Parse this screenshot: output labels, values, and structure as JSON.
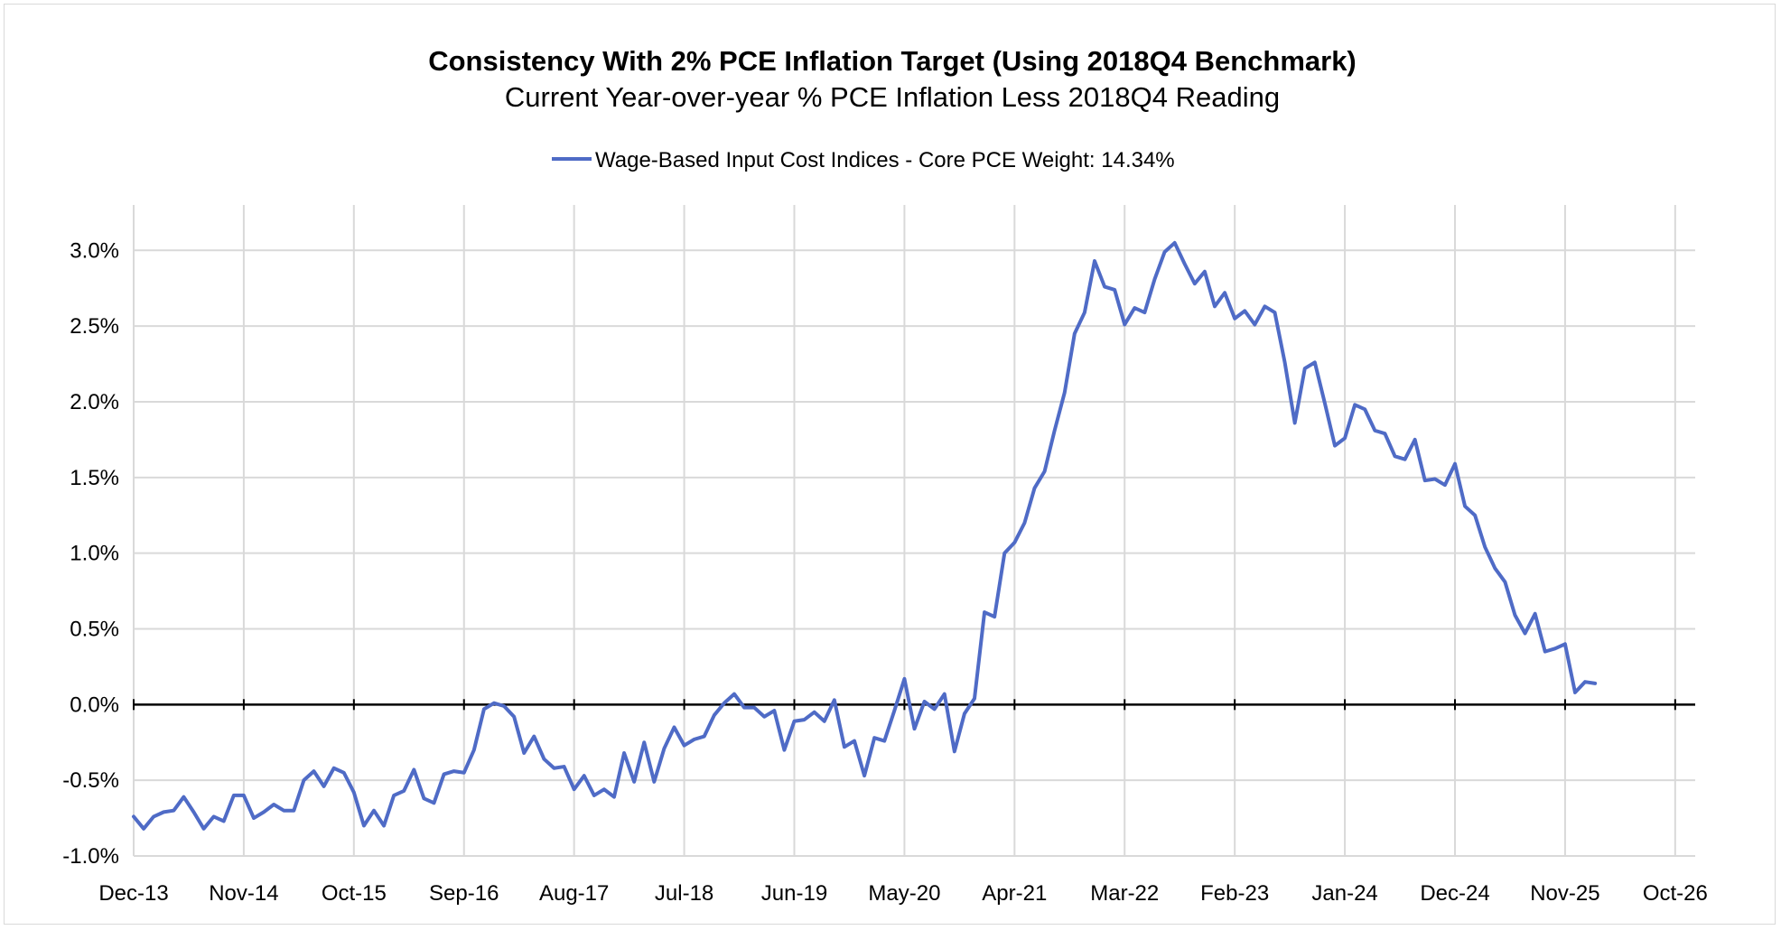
{
  "chart_data": {
    "type": "line",
    "title": "Consistency With 2% PCE Inflation Target (Using 2018Q4 Benchmark)",
    "subtitle": "Current Year-over-year % PCE Inflation Less 2018Q4 Reading",
    "xlabel": "",
    "ylabel": "",
    "x_tick_labels": [
      "Dec-13",
      "Nov-14",
      "Oct-15",
      "Sep-16",
      "Aug-17",
      "Jul-18",
      "Jun-19",
      "May-20",
      "Apr-21",
      "Mar-22",
      "Feb-23",
      "Jan-24",
      "Dec-24",
      "Nov-25",
      "Oct-26"
    ],
    "y_tick_labels": [
      "-1.0%",
      "-0.5%",
      "0.0%",
      "0.5%",
      "1.0%",
      "1.5%",
      "2.0%",
      "2.5%",
      "3.0%"
    ],
    "y_ticks": [
      -1.0,
      -0.5,
      0.0,
      0.5,
      1.0,
      1.5,
      2.0,
      2.5,
      3.0
    ],
    "ylim": [
      -1.0,
      3.3
    ],
    "xlim": [
      "2013-12",
      "2026-12"
    ],
    "grid": true,
    "legend_position": "top-center",
    "colors": {
      "series": "#4f6bc6",
      "zero_line": "#000000",
      "grid": "#d9d9d9"
    },
    "series": [
      {
        "name": "Wage-Based Input Cost Indices - Core PCE Weight: 14.34%",
        "start": "2013-12",
        "frequency": "monthly",
        "values": [
          -0.74,
          -0.82,
          -0.74,
          -0.71,
          -0.7,
          -0.61,
          -0.71,
          -0.82,
          -0.74,
          -0.77,
          -0.6,
          -0.6,
          -0.75,
          -0.71,
          -0.66,
          -0.7,
          -0.7,
          -0.5,
          -0.44,
          -0.54,
          -0.42,
          -0.45,
          -0.58,
          -0.8,
          -0.7,
          -0.8,
          -0.6,
          -0.57,
          -0.43,
          -0.62,
          -0.65,
          -0.46,
          -0.44,
          -0.45,
          -0.3,
          -0.03,
          0.01,
          -0.01,
          -0.08,
          -0.32,
          -0.21,
          -0.36,
          -0.42,
          -0.41,
          -0.56,
          -0.47,
          -0.6,
          -0.56,
          -0.61,
          -0.32,
          -0.51,
          -0.25,
          -0.51,
          -0.29,
          -0.15,
          -0.27,
          -0.23,
          -0.21,
          -0.07,
          0.01,
          0.07,
          -0.02,
          -0.02,
          -0.08,
          -0.04,
          -0.3,
          -0.11,
          -0.1,
          -0.05,
          -0.11,
          0.03,
          -0.28,
          -0.24,
          -0.47,
          -0.22,
          -0.24,
          -0.04,
          0.17,
          -0.16,
          0.02,
          -0.03,
          0.07,
          -0.31,
          -0.06,
          0.04,
          0.61,
          0.58,
          1.0,
          1.07,
          1.2,
          1.43,
          1.54,
          1.81,
          2.06,
          2.45,
          2.59,
          2.93,
          2.76,
          2.74,
          2.51,
          2.62,
          2.59,
          2.81,
          2.99,
          3.05,
          2.91,
          2.78,
          2.86,
          2.63,
          2.72,
          2.55,
          2.6,
          2.51,
          2.63,
          2.59,
          2.26,
          1.86,
          2.22,
          2.26,
          1.99,
          1.71,
          1.76,
          1.98,
          1.95,
          1.81,
          1.79,
          1.64,
          1.62,
          1.75,
          1.48,
          1.49,
          1.45,
          1.59,
          1.31,
          1.25,
          1.04,
          0.9,
          0.81,
          0.59,
          0.47,
          0.6,
          0.35,
          0.37,
          0.4,
          0.08,
          0.15,
          0.14
        ]
      }
    ]
  }
}
